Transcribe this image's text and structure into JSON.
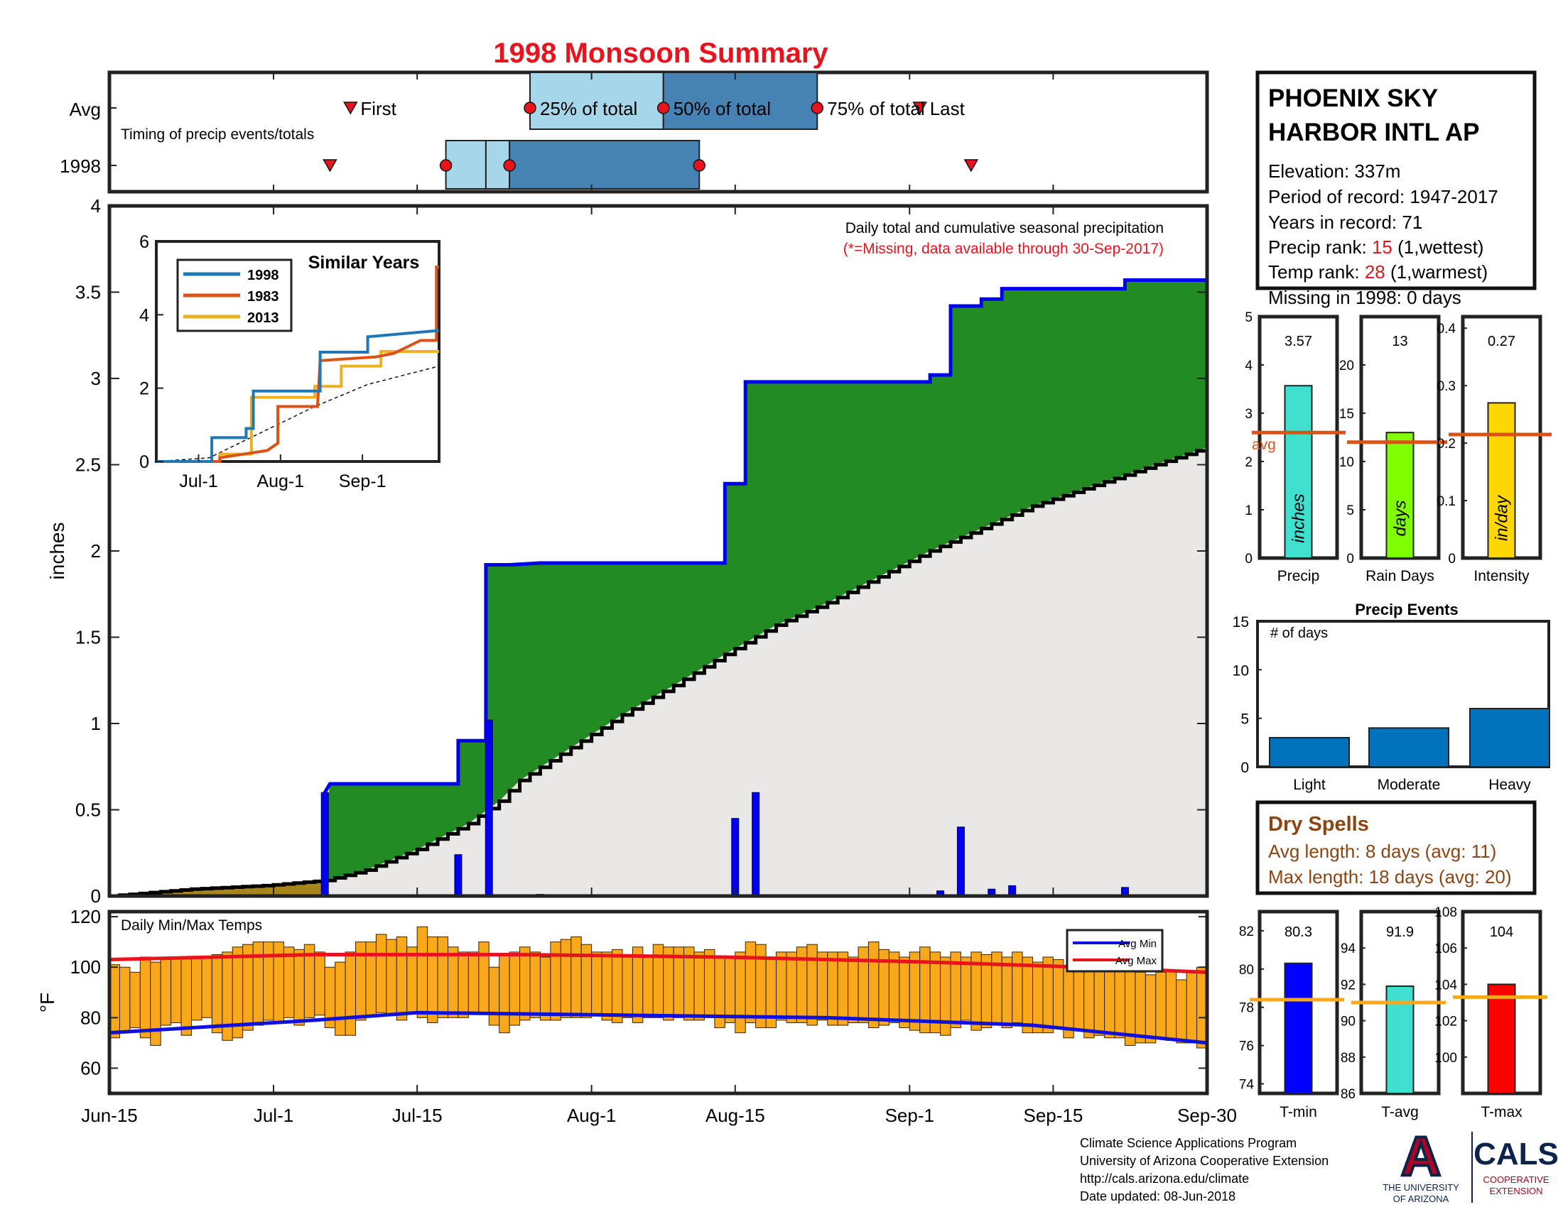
{
  "page": {
    "title": "1998 Monsoon Summary",
    "colors": {
      "title": "#e8131c",
      "frame": "#222222",
      "green": "#228b22",
      "daily_bar": "#0000ee",
      "avg_fill": "#e9e8e6",
      "brown": "#a8841c",
      "orange_bar": "#f8a81a",
      "avg_max": "#e8131c",
      "avg_min": "#1010dd",
      "drab_text": "#8b4513"
    }
  },
  "timing": {
    "rows": [
      "Avg",
      "1998"
    ],
    "note": "Timing of precip events/totals",
    "labels": {
      "first": "First",
      "p25": "25% of total",
      "p50": "50% of total",
      "p75": "75% of total",
      "last": "Last"
    },
    "avg": {
      "first": 23.5,
      "p25": 41,
      "p50": 54,
      "p75": 69,
      "last": 79
    },
    "y1998": {
      "first": 21.5,
      "p25": 36.7,
      "p50": 39,
      "p75": 57.5,
      "last": 84
    }
  },
  "main_axis": {
    "ylabel": "inches",
    "yticks": [
      "0",
      "0.5",
      "1",
      "1.5",
      "2",
      "2.5",
      "3",
      "3.5",
      "4"
    ],
    "xticks": [
      "Jun-15",
      "Jul-1",
      "Jul-15",
      "Aug-1",
      "Aug-15",
      "Sep-1",
      "Sep-15",
      "Sep-30"
    ],
    "xtick_days": [
      0,
      16,
      30,
      47,
      61,
      78,
      92,
      107
    ],
    "note": "Daily total and cumulative seasonal precipitation",
    "missing_note": "(*=Missing, data available through 30-Sep-2017)"
  },
  "chart_data": [
    {
      "type": "area",
      "title": "",
      "ylabel": "inches",
      "ylim": [
        0,
        4
      ],
      "xlim": [
        0,
        107
      ],
      "x_unit": "day",
      "cumulative_1998": [
        [
          0,
          0
        ],
        [
          21,
          0
        ],
        [
          21,
          0.6
        ],
        [
          21.5,
          0.65
        ],
        [
          34,
          0.65
        ],
        [
          34,
          0.9
        ],
        [
          36.7,
          0.9
        ],
        [
          36.7,
          1.92
        ],
        [
          39,
          1.92
        ],
        [
          42,
          1.93
        ],
        [
          60,
          1.93
        ],
        [
          60,
          2.39
        ],
        [
          62,
          2.39
        ],
        [
          62,
          2.98
        ],
        [
          80,
          2.98
        ],
        [
          80,
          3.02
        ],
        [
          82,
          3.02
        ],
        [
          82,
          3.42
        ],
        [
          85,
          3.42
        ],
        [
          85,
          3.46
        ],
        [
          87,
          3.46
        ],
        [
          87,
          3.52
        ],
        [
          99,
          3.52
        ],
        [
          99,
          3.57
        ],
        [
          107,
          3.57
        ]
      ],
      "average_cumulative": [
        [
          0,
          0
        ],
        [
          8,
          0.04
        ],
        [
          15,
          0.06
        ],
        [
          21,
          0.09
        ],
        [
          25,
          0.15
        ],
        [
          30,
          0.27
        ],
        [
          35,
          0.42
        ],
        [
          38,
          0.55
        ],
        [
          40,
          0.67
        ],
        [
          45,
          0.86
        ],
        [
          50,
          1.05
        ],
        [
          55,
          1.22
        ],
        [
          60,
          1.4
        ],
        [
          65,
          1.57
        ],
        [
          70,
          1.7
        ],
        [
          75,
          1.85
        ],
        [
          80,
          2.0
        ],
        [
          85,
          2.13
        ],
        [
          90,
          2.26
        ],
        [
          95,
          2.36
        ],
        [
          100,
          2.46
        ],
        [
          105,
          2.56
        ],
        [
          107,
          2.6
        ]
      ],
      "daily_precip": [
        [
          21,
          0.6
        ],
        [
          34,
          0.24
        ],
        [
          37,
          1.02
        ],
        [
          42,
          0.01
        ],
        [
          61,
          0.45
        ],
        [
          63,
          0.6
        ],
        [
          81,
          0.03
        ],
        [
          83,
          0.4
        ],
        [
          86,
          0.04
        ],
        [
          88,
          0.06
        ],
        [
          99,
          0.05
        ]
      ]
    },
    {
      "type": "line",
      "title": "Similar Years",
      "xlim": [
        0,
        107
      ],
      "ylim": [
        0,
        6
      ],
      "yticks": [
        "0",
        "2",
        "4",
        "6"
      ],
      "xticks": [
        "Jul-1",
        "Aug-1",
        "Sep-1"
      ],
      "xtick_days": [
        16,
        47,
        78
      ],
      "series": [
        {
          "name": "1998",
          "color": "#1f77b4",
          "points": [
            [
              0,
              0
            ],
            [
              21,
              0
            ],
            [
              21,
              0.65
            ],
            [
              34,
              0.65
            ],
            [
              34,
              0.9
            ],
            [
              36.7,
              0.9
            ],
            [
              36.7,
              1.92
            ],
            [
              62,
              1.92
            ],
            [
              62,
              2.98
            ],
            [
              80,
              2.98
            ],
            [
              80,
              3.4
            ],
            [
              107,
              3.57
            ]
          ]
        },
        {
          "name": "1983",
          "color": "#d95319",
          "points": [
            [
              0,
              0
            ],
            [
              24,
              0
            ],
            [
              24,
              0.1
            ],
            [
              42,
              0.3
            ],
            [
              46,
              0.5
            ],
            [
              46,
              1.5
            ],
            [
              61,
              1.5
            ],
            [
              62,
              2.75
            ],
            [
              83,
              2.85
            ],
            [
              90,
              2.95
            ],
            [
              100,
              3.3
            ],
            [
              106,
              3.3
            ],
            [
              106,
              5.3
            ],
            [
              107,
              5.3
            ]
          ]
        },
        {
          "name": "2013",
          "color": "#edb120",
          "points": [
            [
              0,
              0
            ],
            [
              24,
              0
            ],
            [
              24,
              0.2
            ],
            [
              36,
              0.2
            ],
            [
              36,
              1.75
            ],
            [
              60,
              1.75
            ],
            [
              60,
              2.05
            ],
            [
              70,
              2.05
            ],
            [
              70,
              2.6
            ],
            [
              85,
              2.6
            ],
            [
              85,
              3.0
            ],
            [
              107,
              3.0
            ]
          ]
        }
      ],
      "average": [
        [
          0,
          0
        ],
        [
          20,
          0.1
        ],
        [
          40,
          0.8
        ],
        [
          60,
          1.5
        ],
        [
          80,
          2.1
        ],
        [
          107,
          2.6
        ]
      ]
    },
    {
      "type": "bar",
      "title": "Daily Min/Max Temps",
      "ylabel": "°F",
      "ylim": [
        50,
        122
      ],
      "yticks": [
        "60",
        "80",
        "100",
        "120"
      ],
      "legend": [
        "Avg Min",
        "Avg Max"
      ],
      "legend_position": "top-right",
      "tmax": [
        101,
        100,
        98,
        104,
        102,
        104,
        104,
        104,
        104,
        104,
        105,
        106,
        108,
        109,
        110,
        110,
        110,
        108,
        107,
        109,
        106,
        100,
        102,
        106,
        110,
        110,
        113,
        111,
        112,
        108,
        116,
        112,
        112,
        108,
        106,
        106,
        110,
        100,
        105,
        106,
        108,
        106,
        104,
        110,
        111,
        112,
        109,
        106,
        106,
        107,
        105,
        108,
        104,
        109,
        108,
        108,
        108,
        106,
        107,
        104,
        104,
        106,
        110,
        109,
        103,
        106,
        106,
        108,
        109,
        106,
        106,
        106,
        104,
        108,
        110,
        107,
        106,
        104,
        106,
        108,
        106,
        104,
        106,
        104,
        106,
        105,
        106,
        104,
        106,
        104,
        102,
        104,
        103,
        100,
        104,
        100,
        100,
        101,
        100,
        99,
        98,
        97,
        98,
        99,
        95,
        98,
        100
      ],
      "tmin": [
        72,
        74,
        76,
        72,
        69,
        77,
        78,
        73,
        79,
        80,
        74,
        71,
        72,
        75,
        77,
        79,
        78,
        80,
        77,
        80,
        81,
        76,
        73,
        73,
        79,
        81,
        82,
        81,
        79,
        82,
        80,
        78,
        80,
        80,
        80,
        82,
        82,
        77,
        74,
        77,
        79,
        80,
        79,
        79,
        80,
        80,
        80,
        81,
        79,
        78,
        80,
        78,
        80,
        80,
        79,
        80,
        79,
        79,
        80,
        76,
        78,
        74,
        78,
        76,
        76,
        79,
        78,
        78,
        77,
        79,
        77,
        77,
        78,
        78,
        76,
        77,
        78,
        76,
        75,
        74,
        74,
        73,
        76,
        79,
        75,
        76,
        77,
        76,
        78,
        74,
        74,
        74,
        76,
        72,
        75,
        72,
        73,
        72,
        72,
        69,
        70,
        70,
        72,
        71,
        70,
        70,
        68
      ],
      "avg_max": [
        [
          0,
          103
        ],
        [
          20,
          105
        ],
        [
          40,
          105
        ],
        [
          60,
          104
        ],
        [
          80,
          102
        ],
        [
          95,
          100
        ],
        [
          107,
          98
        ]
      ],
      "avg_min": [
        [
          0,
          74
        ],
        [
          20,
          79
        ],
        [
          30,
          82
        ],
        [
          50,
          81
        ],
        [
          70,
          80
        ],
        [
          90,
          77
        ],
        [
          107,
          70
        ]
      ]
    },
    {
      "type": "bar",
      "categories": [
        "Precip",
        "Rain Days",
        "Intensity"
      ],
      "values": [
        3.57,
        13,
        0.27
      ],
      "averages": [
        2.6,
        12,
        0.215
      ],
      "units": [
        "inches",
        "days",
        "in/day"
      ],
      "avg_label": "avg",
      "ylims": [
        [
          0,
          5
        ],
        [
          0,
          25
        ],
        [
          0,
          0.42
        ]
      ],
      "yticks": [
        [
          "0",
          "1",
          "2",
          "3",
          "4",
          "5"
        ],
        [
          "0",
          "5",
          "10",
          "15",
          "20"
        ],
        [
          "0",
          "0.1",
          "0.2",
          "0.3",
          "0.4"
        ]
      ],
      "colors": [
        "#40e0d0",
        "#7fff00",
        "#ffd700"
      ]
    },
    {
      "type": "bar",
      "title": "Precip Events",
      "ylabel": "# of days",
      "categories": [
        "Light",
        "Moderate",
        "Heavy"
      ],
      "values": [
        3,
        4,
        6
      ],
      "ylim": [
        0,
        15
      ],
      "yticks": [
        "0",
        "5",
        "10",
        "15"
      ]
    },
    {
      "type": "bar",
      "categories": [
        "T-min",
        "T-avg",
        "T-max"
      ],
      "values": [
        80.3,
        91.9,
        104
      ],
      "labels": [
        "80.3",
        "91.9",
        "104"
      ],
      "averages": [
        78.4,
        91.0,
        103.3
      ],
      "ylims": [
        [
          73.5,
          83
        ],
        [
          86,
          96
        ],
        [
          98,
          108
        ]
      ],
      "yticks": [
        [
          "74",
          "76",
          "78",
          "80",
          "82"
        ],
        [
          "86",
          "88",
          "90",
          "92",
          "94"
        ],
        [
          "100",
          "102",
          "104",
          "106",
          "108"
        ]
      ],
      "colors": [
        "#0000ff",
        "#40e0d0",
        "#ff0000"
      ]
    }
  ],
  "station": {
    "name_line1": "PHOENIX SKY",
    "name_line2": "HARBOR INTL AP",
    "elevation": "Elevation: 337m",
    "period": "Period of record: 1947-2017",
    "years": "Years in record: 71",
    "precip_rank_prefix": "Precip rank: ",
    "precip_rank": "15",
    "precip_rank_suffix": " (1,wettest)",
    "temp_rank_prefix": "Temp rank: ",
    "temp_rank": "28",
    "temp_rank_suffix": " (1,warmest)",
    "missing": "Missing in 1998: 0 days"
  },
  "dry_spells": {
    "title": "Dry Spells",
    "avg": "Avg length: 8 days (avg: 11)",
    "max": "Max length: 18 days (avg: 20)"
  },
  "footer": {
    "line1": "Climate Science Applications Program",
    "line2": "University of Arizona Cooperative Extension",
    "line3": "http://cals.arizona.edu/climate",
    "line4": " Date updated: 08-Jun-2018",
    "ua_letter": "A",
    "ua_name1": "THE UNIVERSITY",
    "ua_name2": "OF ARIZONA",
    "cals": "CALS",
    "cals_sub1": "COOPERATIVE",
    "cals_sub2": "EXTENSION"
  }
}
